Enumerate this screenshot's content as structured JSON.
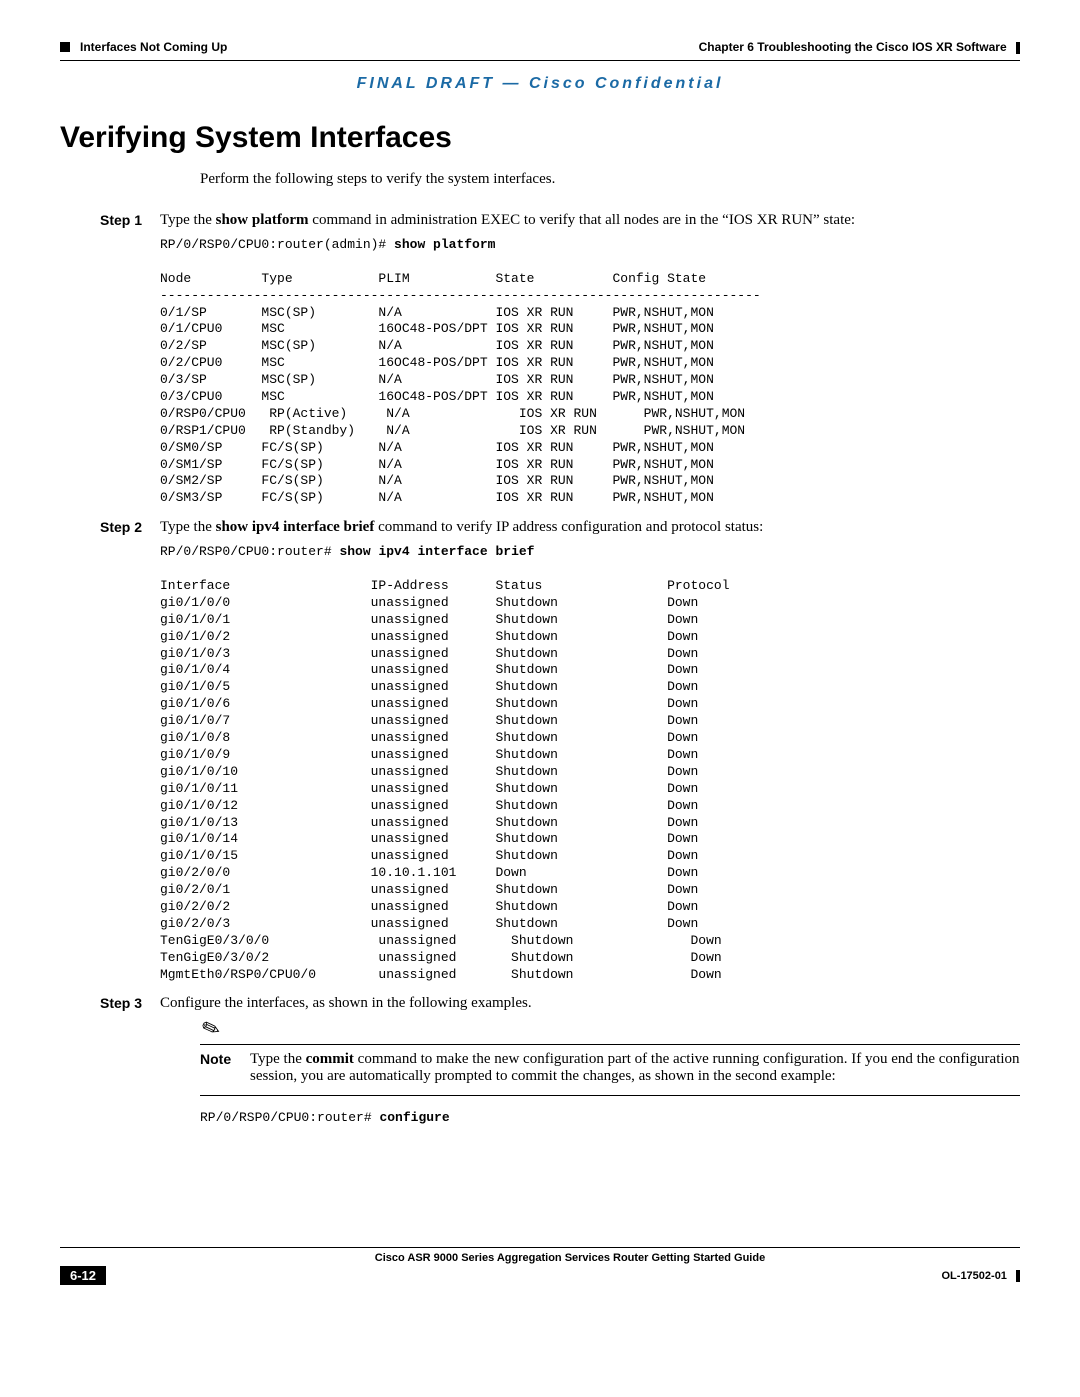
{
  "header": {
    "left": "Interfaces Not Coming Up",
    "right": "Chapter 6    Troubleshooting the Cisco IOS XR Software"
  },
  "confidential": "FINAL DRAFT — Cisco Confidential",
  "title": "Verifying System Interfaces",
  "intro": "Perform the following steps to verify the system interfaces.",
  "step1": {
    "label": "Step 1",
    "text_pre": "Type the ",
    "cmd": "show platform",
    "text_post": " command in administration EXEC to verify that all nodes are in the “IOS XR RUN” state:",
    "prompt": "RP/0/RSP0/CPU0:router(admin)# ",
    "prompt_cmd": "show platform",
    "table_header": "Node         Type           PLIM           State          Config State",
    "table_sep": "-----------------------------------------------------------------------------",
    "rows": [
      "0/1/SP       MSC(SP)        N/A            IOS XR RUN     PWR,NSHUT,MON",
      "0/1/CPU0     MSC            16OC48-POS/DPT IOS XR RUN     PWR,NSHUT,MON",
      "0/2/SP       MSC(SP)        N/A            IOS XR RUN     PWR,NSHUT,MON",
      "0/2/CPU0     MSC            16OC48-POS/DPT IOS XR RUN     PWR,NSHUT,MON",
      "0/3/SP       MSC(SP)        N/A            IOS XR RUN     PWR,NSHUT,MON",
      "0/3/CPU0     MSC            16OC48-POS/DPT IOS XR RUN     PWR,NSHUT,MON",
      "0/RSP0/CPU0   RP(Active)     N/A              IOS XR RUN      PWR,NSHUT,MON",
      "0/RSP1/CPU0   RP(Standby)    N/A              IOS XR RUN      PWR,NSHUT,MON",
      "0/SM0/SP     FC/S(SP)       N/A            IOS XR RUN     PWR,NSHUT,MON",
      "0/SM1/SP     FC/S(SP)       N/A            IOS XR RUN     PWR,NSHUT,MON",
      "0/SM2/SP     FC/S(SP)       N/A            IOS XR RUN     PWR,NSHUT,MON",
      "0/SM3/SP     FC/S(SP)       N/A            IOS XR RUN     PWR,NSHUT,MON"
    ]
  },
  "step2": {
    "label": "Step 2",
    "text_pre": "Type the ",
    "cmd": "show ipv4 interface brief",
    "text_post": " command to verify IP address configuration and protocol status:",
    "prompt": "RP/0/RSP0/CPU0:router# ",
    "prompt_cmd": "show ipv4 interface brief",
    "table_header": "Interface                  IP-Address      Status                Protocol",
    "rows": [
      "gi0/1/0/0                  unassigned      Shutdown              Down",
      "gi0/1/0/1                  unassigned      Shutdown              Down",
      "gi0/1/0/2                  unassigned      Shutdown              Down",
      "gi0/1/0/3                  unassigned      Shutdown              Down",
      "gi0/1/0/4                  unassigned      Shutdown              Down",
      "gi0/1/0/5                  unassigned      Shutdown              Down",
      "gi0/1/0/6                  unassigned      Shutdown              Down",
      "gi0/1/0/7                  unassigned      Shutdown              Down",
      "gi0/1/0/8                  unassigned      Shutdown              Down",
      "gi0/1/0/9                  unassigned      Shutdown              Down",
      "gi0/1/0/10                 unassigned      Shutdown              Down",
      "gi0/1/0/11                 unassigned      Shutdown              Down",
      "gi0/1/0/12                 unassigned      Shutdown              Down",
      "gi0/1/0/13                 unassigned      Shutdown              Down",
      "gi0/1/0/14                 unassigned      Shutdown              Down",
      "gi0/1/0/15                 unassigned      Shutdown              Down",
      "gi0/2/0/0                  10.10.1.101     Down                  Down",
      "gi0/2/0/1                  unassigned      Shutdown              Down",
      "gi0/2/0/2                  unassigned      Shutdown              Down",
      "gi0/2/0/3                  unassigned      Shutdown              Down",
      "TenGigE0/3/0/0              unassigned       Shutdown               Down",
      "TenGigE0/3/0/2              unassigned       Shutdown               Down",
      "MgmtEth0/RSP0/CPU0/0        unassigned       Shutdown               Down"
    ]
  },
  "step3": {
    "label": "Step 3",
    "text": "Configure the interfaces, as shown in the following examples."
  },
  "note": {
    "label": "Note",
    "text_pre": "Type the ",
    "cmd": "commit",
    "text_post": " command to make the new configuration part of the active running configuration. If you end the configuration session, you are automatically prompted to commit the changes, as shown in the second example:"
  },
  "configure": {
    "prompt": "RP/0/RSP0/CPU0:router# ",
    "cmd": "configure"
  },
  "footer": {
    "title": "Cisco ASR 9000 Series Aggregation Services Router Getting Started Guide",
    "page": "6-12",
    "doc": "OL-17502-01"
  }
}
